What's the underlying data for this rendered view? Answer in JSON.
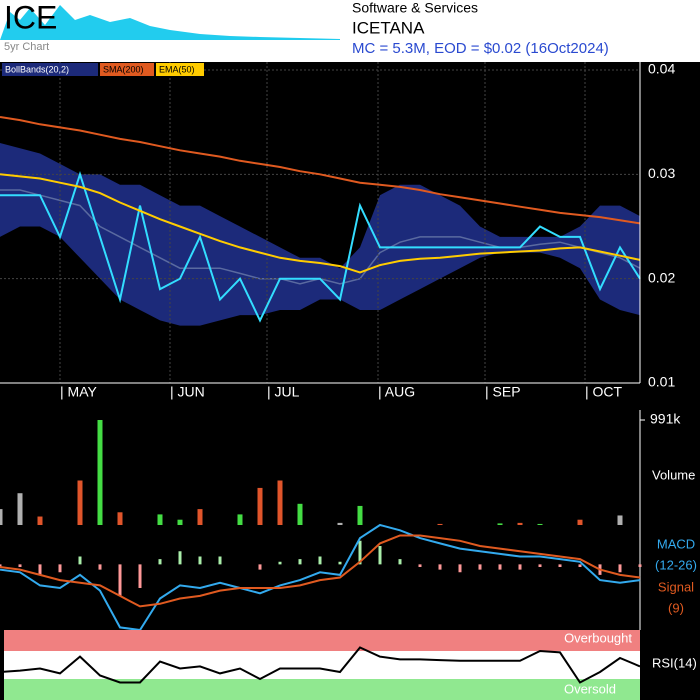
{
  "header": {
    "ticker": "ICE",
    "mini_label": "5yr Chart",
    "sector": "Software & Services",
    "name": "ICETANA",
    "summary": "MC = 5.3M, EOD = $0.02 (16Oct2024)"
  },
  "chart_data": [
    {
      "type": "line",
      "xlim": [
        0,
        32
      ],
      "ylim": [
        0.01,
        0.04
      ],
      "yticks": [
        0.01,
        0.02,
        0.03,
        0.04
      ],
      "grid": true,
      "xticks": [
        {
          "value": 3,
          "label": "| MAY"
        },
        {
          "value": 8.5,
          "label": "| JUN"
        },
        {
          "value": 13.35,
          "label": "| JUL"
        },
        {
          "value": 18.9,
          "label": "| AUG"
        },
        {
          "value": 24.25,
          "label": "| SEP"
        },
        {
          "value": 29.25,
          "label": "| OCT"
        }
      ],
      "bands": {
        "name": "BollBands(20,2)",
        "color": "#1c2a7a",
        "middle_color": "#5a6aa0",
        "upper": [
          0.033,
          0.0325,
          0.032,
          0.031,
          0.03,
          0.03,
          0.029,
          0.029,
          0.028,
          0.027,
          0.027,
          0.026,
          0.025,
          0.024,
          0.023,
          0.022,
          0.022,
          0.021,
          0.023,
          0.028,
          0.029,
          0.029,
          0.028,
          0.027,
          0.025,
          0.024,
          0.024,
          0.024,
          0.024,
          0.025,
          0.027,
          0.027,
          0.026
        ],
        "middle": [
          0.0285,
          0.0285,
          0.028,
          0.0275,
          0.027,
          0.025,
          0.024,
          0.023,
          0.022,
          0.021,
          0.021,
          0.021,
          0.0205,
          0.02,
          0.02,
          0.0195,
          0.02,
          0.0195,
          0.02,
          0.0225,
          0.0235,
          0.024,
          0.024,
          0.024,
          0.0235,
          0.023,
          0.023,
          0.0233,
          0.0235,
          0.023,
          0.0225,
          0.022,
          0.021
        ],
        "lower": [
          0.024,
          0.025,
          0.025,
          0.024,
          0.022,
          0.02,
          0.018,
          0.017,
          0.016,
          0.0155,
          0.0155,
          0.016,
          0.0165,
          0.0165,
          0.017,
          0.017,
          0.018,
          0.018,
          0.017,
          0.017,
          0.018,
          0.019,
          0.02,
          0.021,
          0.022,
          0.0225,
          0.0225,
          0.0225,
          0.022,
          0.021,
          0.018,
          0.017,
          0.0165
        ]
      },
      "series": [
        {
          "color": "#33ddff",
          "values": [
            0.028,
            0.028,
            0.028,
            0.024,
            0.03,
            0.024,
            0.018,
            0.027,
            0.019,
            0.02,
            0.024,
            0.018,
            0.02,
            0.016,
            0.02,
            0.02,
            0.02,
            0.018,
            0.027,
            0.023,
            0.023,
            0.023,
            0.023,
            0.023,
            0.023,
            0.023,
            0.023,
            0.025,
            0.024,
            0.024,
            0.019,
            0.023,
            0.02
          ]
        },
        {
          "name": "SMA(200)",
          "color": "#e05a20",
          "values": [
            0.0355,
            0.0352,
            0.0348,
            0.0345,
            0.0342,
            0.0338,
            0.0334,
            0.0331,
            0.0327,
            0.0323,
            0.032,
            0.0317,
            0.0313,
            0.031,
            0.0307,
            0.0303,
            0.03,
            0.0296,
            0.0292,
            0.029,
            0.0288,
            0.0285,
            0.0281,
            0.0278,
            0.0275,
            0.0272,
            0.0269,
            0.0266,
            0.0263,
            0.0261,
            0.0259,
            0.0256,
            0.0253
          ]
        },
        {
          "name": "EMA(50)",
          "color": "#ffcc00",
          "values": [
            0.03,
            0.0298,
            0.0296,
            0.0292,
            0.0288,
            0.0282,
            0.0273,
            0.0265,
            0.0257,
            0.025,
            0.0243,
            0.0236,
            0.023,
            0.0225,
            0.022,
            0.0217,
            0.0215,
            0.0212,
            0.0206,
            0.0213,
            0.0217,
            0.0219,
            0.022,
            0.0222,
            0.0224,
            0.0225,
            0.0226,
            0.0227,
            0.0229,
            0.023,
            0.0226,
            0.0222,
            0.0218
          ]
        }
      ]
    },
    {
      "type": "bar",
      "ylabel": "Volume",
      "ylim": [
        0,
        991000
      ],
      "yticks": [
        {
          "value": 991000,
          "label": "991k"
        }
      ],
      "values": [
        150000,
        300000,
        80000,
        0,
        420000,
        991000,
        120000,
        0,
        100000,
        50000,
        150000,
        0,
        100000,
        350000,
        420000,
        200000,
        0,
        20000,
        180000,
        0,
        0,
        0,
        10000,
        0,
        0,
        15000,
        20000,
        10000,
        0,
        50000,
        0,
        90000,
        0
      ],
      "colors": [
        "#b0b0b0",
        "#b0b0b0",
        "#e0552b",
        "#e0552b",
        "#e0552b",
        "#44dd44",
        "#e0552b",
        "#b0b0b0",
        "#44dd44",
        "#44dd44",
        "#e0552b",
        "#b0b0b0",
        "#44dd44",
        "#e0552b",
        "#e0552b",
        "#44dd44",
        "#b0b0b0",
        "#b0b0b0",
        "#44dd44",
        "#b0b0b0",
        "#b0b0b0",
        "#b0b0b0",
        "#e0552b",
        "#b0b0b0",
        "#b0b0b0",
        "#44dd44",
        "#e0552b",
        "#44dd44",
        "#b0b0b0",
        "#e0552b",
        "#b0b0b0",
        "#b0b0b0",
        "#b0b0b0"
      ]
    },
    {
      "type": "macd",
      "ylim": [
        -0.0025,
        0.0015
      ],
      "series": [
        {
          "name": "MACD",
          "params": "(12-26)",
          "color": "#33aaee",
          "values": [
            -0.0002,
            -0.0003,
            -0.0008,
            -0.0009,
            -0.0004,
            -0.001,
            -0.0024,
            -0.0025,
            -0.0013,
            -0.0008,
            -0.0009,
            -0.0007,
            -0.0009,
            -0.0011,
            -0.0008,
            -0.0006,
            -0.0003,
            -0.0004,
            0.001,
            0.0015,
            0.0013,
            0.001,
            0.0008,
            0.0006,
            0.0005,
            0.0004,
            0.0003,
            0.0003,
            0.0002,
            0.0001,
            -0.0006,
            -0.0007,
            -0.0006
          ]
        },
        {
          "name": "Signal",
          "params": "(9)",
          "color": "#e05a20",
          "values": [
            -0.0001,
            -0.0002,
            -0.0004,
            -0.0006,
            -0.0007,
            -0.0008,
            -0.0012,
            -0.0016,
            -0.0015,
            -0.0013,
            -0.0012,
            -0.001,
            -0.0009,
            -0.0009,
            -0.0009,
            -0.0008,
            -0.0006,
            -0.0005,
            0.0001,
            0.0008,
            0.0011,
            0.0011,
            0.001,
            0.0009,
            0.0007,
            0.0006,
            0.0005,
            0.0004,
            0.0003,
            0.0002,
            -0.0002,
            -0.0004,
            -0.0005
          ]
        }
      ],
      "histogram": {
        "up_color": "#aaeeaa",
        "down_color": "#ff9999",
        "values": [
          -0.0001,
          -0.0001,
          -0.0004,
          -0.0003,
          0.0003,
          -0.0002,
          -0.0012,
          -0.0009,
          0.0002,
          0.0005,
          0.0003,
          0.0003,
          0,
          -0.0002,
          0.0001,
          0.0002,
          0.0003,
          0.0001,
          0.0009,
          0.0007,
          0.0002,
          -0.0001,
          -0.0002,
          -0.0003,
          -0.0002,
          -0.0002,
          -0.0002,
          -0.0001,
          -0.0001,
          -0.0001,
          -0.0004,
          -0.0003,
          -0.0001
        ]
      }
    },
    {
      "type": "rsi",
      "ylabel": "RSI(14)",
      "ylim": [
        0,
        100
      ],
      "color": "#000000",
      "overbought": {
        "value": 70,
        "label": "Overbought",
        "color": "#f08080"
      },
      "oversold": {
        "value": 30,
        "label": "Oversold",
        "color": "#90e890"
      },
      "values": [
        40,
        42,
        45,
        38,
        62,
        35,
        25,
        25,
        55,
        45,
        48,
        38,
        45,
        30,
        45,
        45,
        45,
        40,
        75,
        62,
        58,
        58,
        57,
        56,
        56,
        56,
        56,
        70,
        68,
        25,
        40,
        60,
        48
      ]
    }
  ]
}
